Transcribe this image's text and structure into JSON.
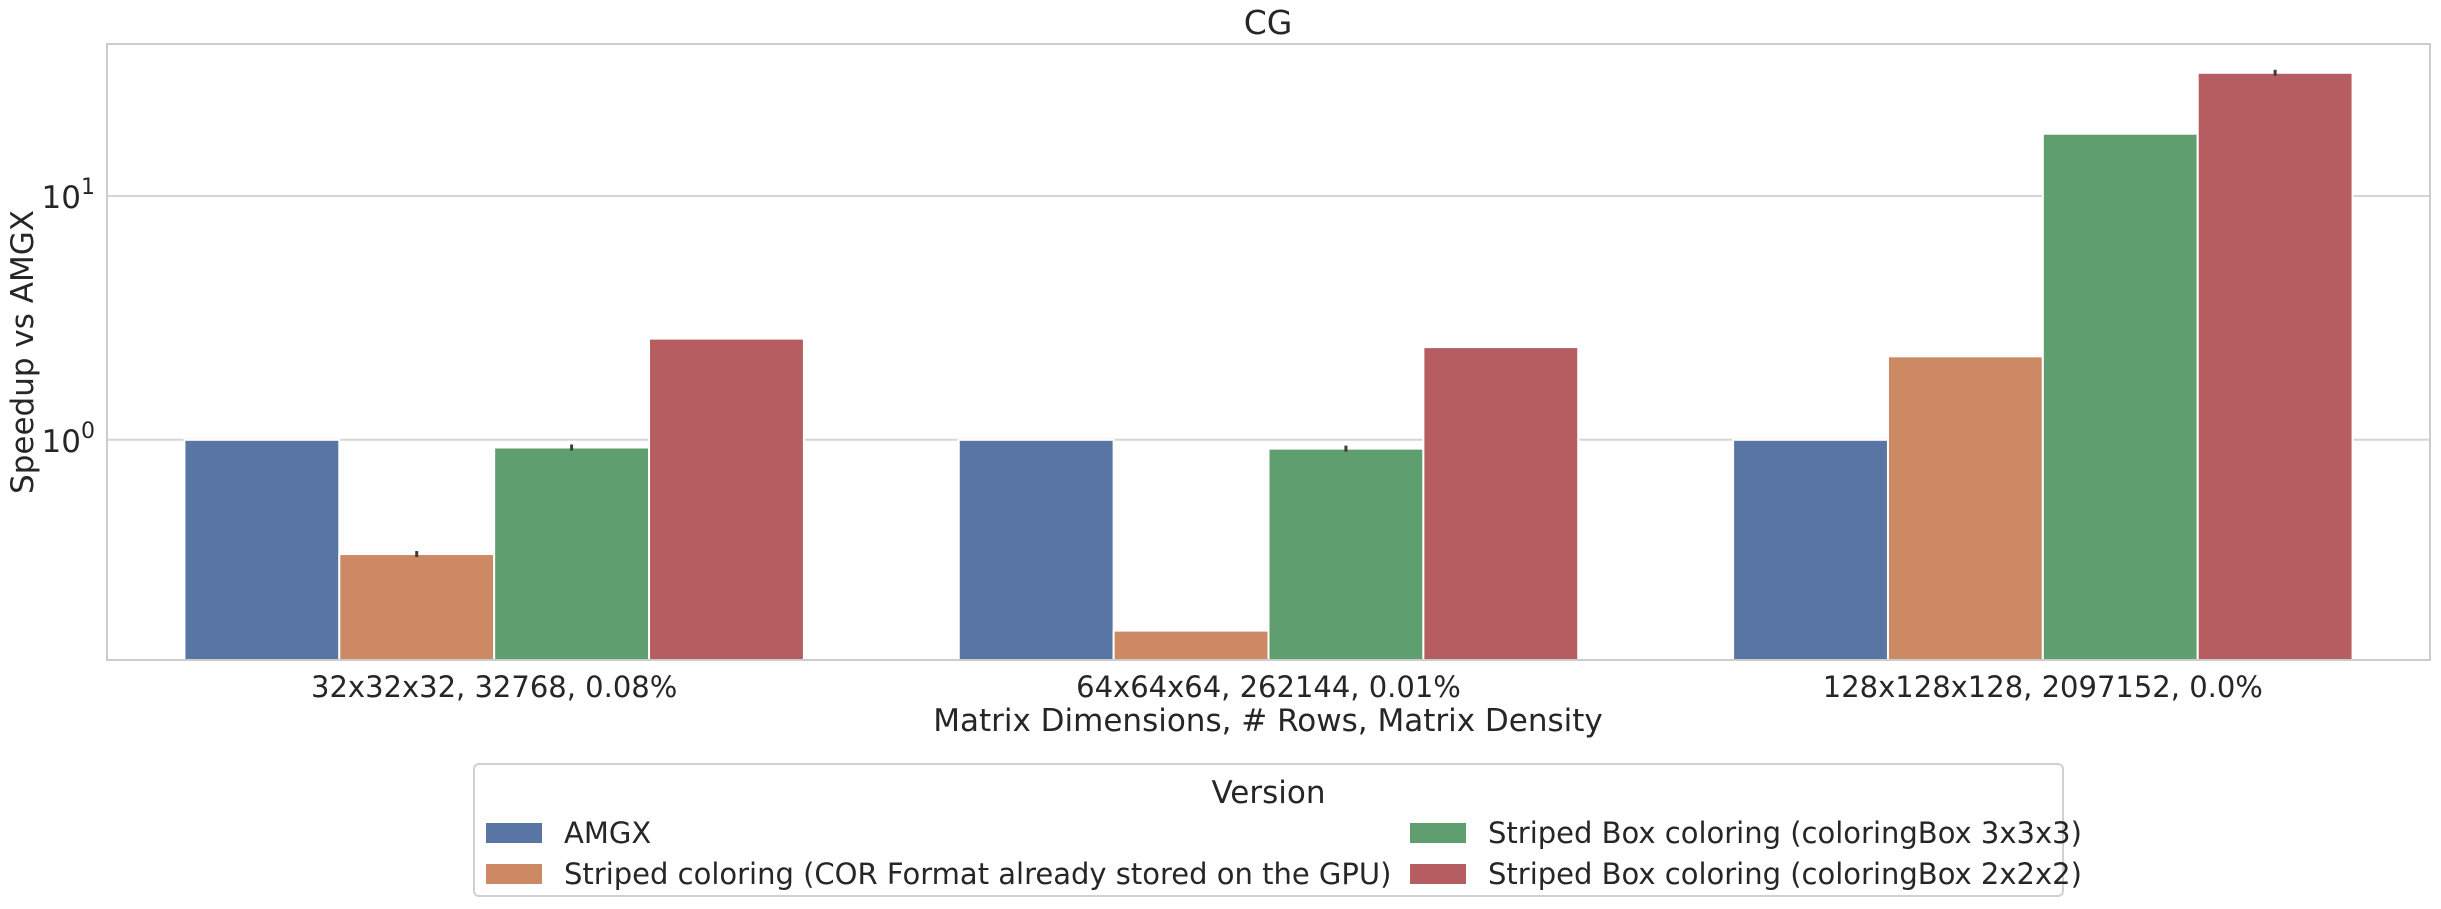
{
  "chart_data": {
    "type": "bar",
    "title": "CG",
    "xlabel": "Matrix Dimensions, # Rows, Matrix Density",
    "ylabel": "Speedup vs AMGX",
    "yscale": "log",
    "ylim": [
      0.125,
      42
    ],
    "yticks": [
      {
        "value": 1,
        "base": "10",
        "exp": "0"
      },
      {
        "value": 10,
        "base": "10",
        "exp": "1"
      }
    ],
    "grid": true,
    "categories": [
      "32x32x32, 32768, 0.08%",
      "64x64x64, 262144, 0.01%",
      "128x128x128, 2097152, 0.0%"
    ],
    "series": [
      {
        "name": "AMGX",
        "color": "#5975a4",
        "values": [
          1.0,
          1.0,
          1.0
        ],
        "errors": [
          false,
          false,
          false
        ]
      },
      {
        "name": "Striped coloring (COR Format already stored on the GPU)",
        "color": "#cc8963",
        "values": [
          0.34,
          0.165,
          2.2
        ],
        "errors": [
          true,
          false,
          false
        ]
      },
      {
        "name": "Striped Box coloring (coloringBox 3x3x3)",
        "color": "#5f9e6e",
        "values": [
          0.93,
          0.92,
          18.0
        ],
        "errors": [
          true,
          true,
          false
        ]
      },
      {
        "name": "Striped Box coloring (coloringBox 2x2x2)",
        "color": "#b55d60",
        "values": [
          2.6,
          2.4,
          32.0
        ],
        "errors": [
          false,
          false,
          true
        ]
      }
    ],
    "legend": {
      "title": "Version",
      "placement": "bottom-center",
      "columns": 2
    }
  }
}
